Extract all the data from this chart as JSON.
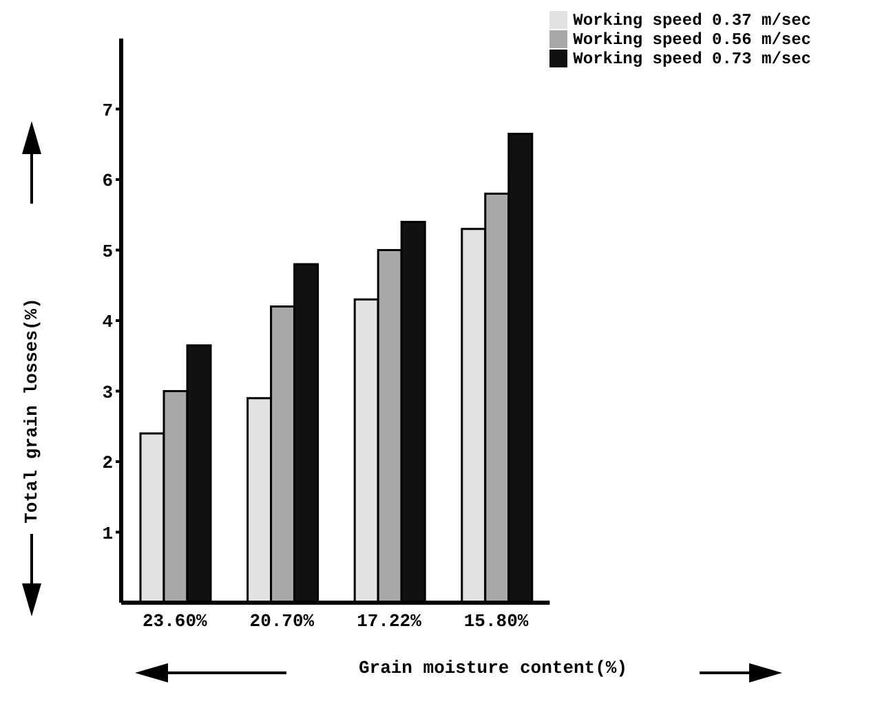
{
  "chart_data": {
    "type": "bar",
    "xlabel": "Grain moisture content(%)",
    "ylabel": "Total grain losses(%)",
    "categories": [
      "23.60%",
      "20.70%",
      "17.22%",
      "15.80%"
    ],
    "series": [
      {
        "name": "Working speed 0.37 m/sec",
        "color": "#e2e2e2",
        "values": [
          2.4,
          2.9,
          4.3,
          5.3
        ]
      },
      {
        "name": "Working speed 0.56 m/sec",
        "color": "#a8a8a8",
        "values": [
          3.0,
          4.2,
          5.0,
          5.8
        ]
      },
      {
        "name": "Working speed 0.73 m/sec",
        "color": "#111111",
        "values": [
          3.65,
          4.8,
          5.4,
          6.65
        ]
      }
    ],
    "ylim": [
      0,
      8
    ],
    "yticks": [
      1,
      2,
      3,
      4,
      5,
      6,
      7
    ],
    "grid": false,
    "legend": "top right"
  }
}
